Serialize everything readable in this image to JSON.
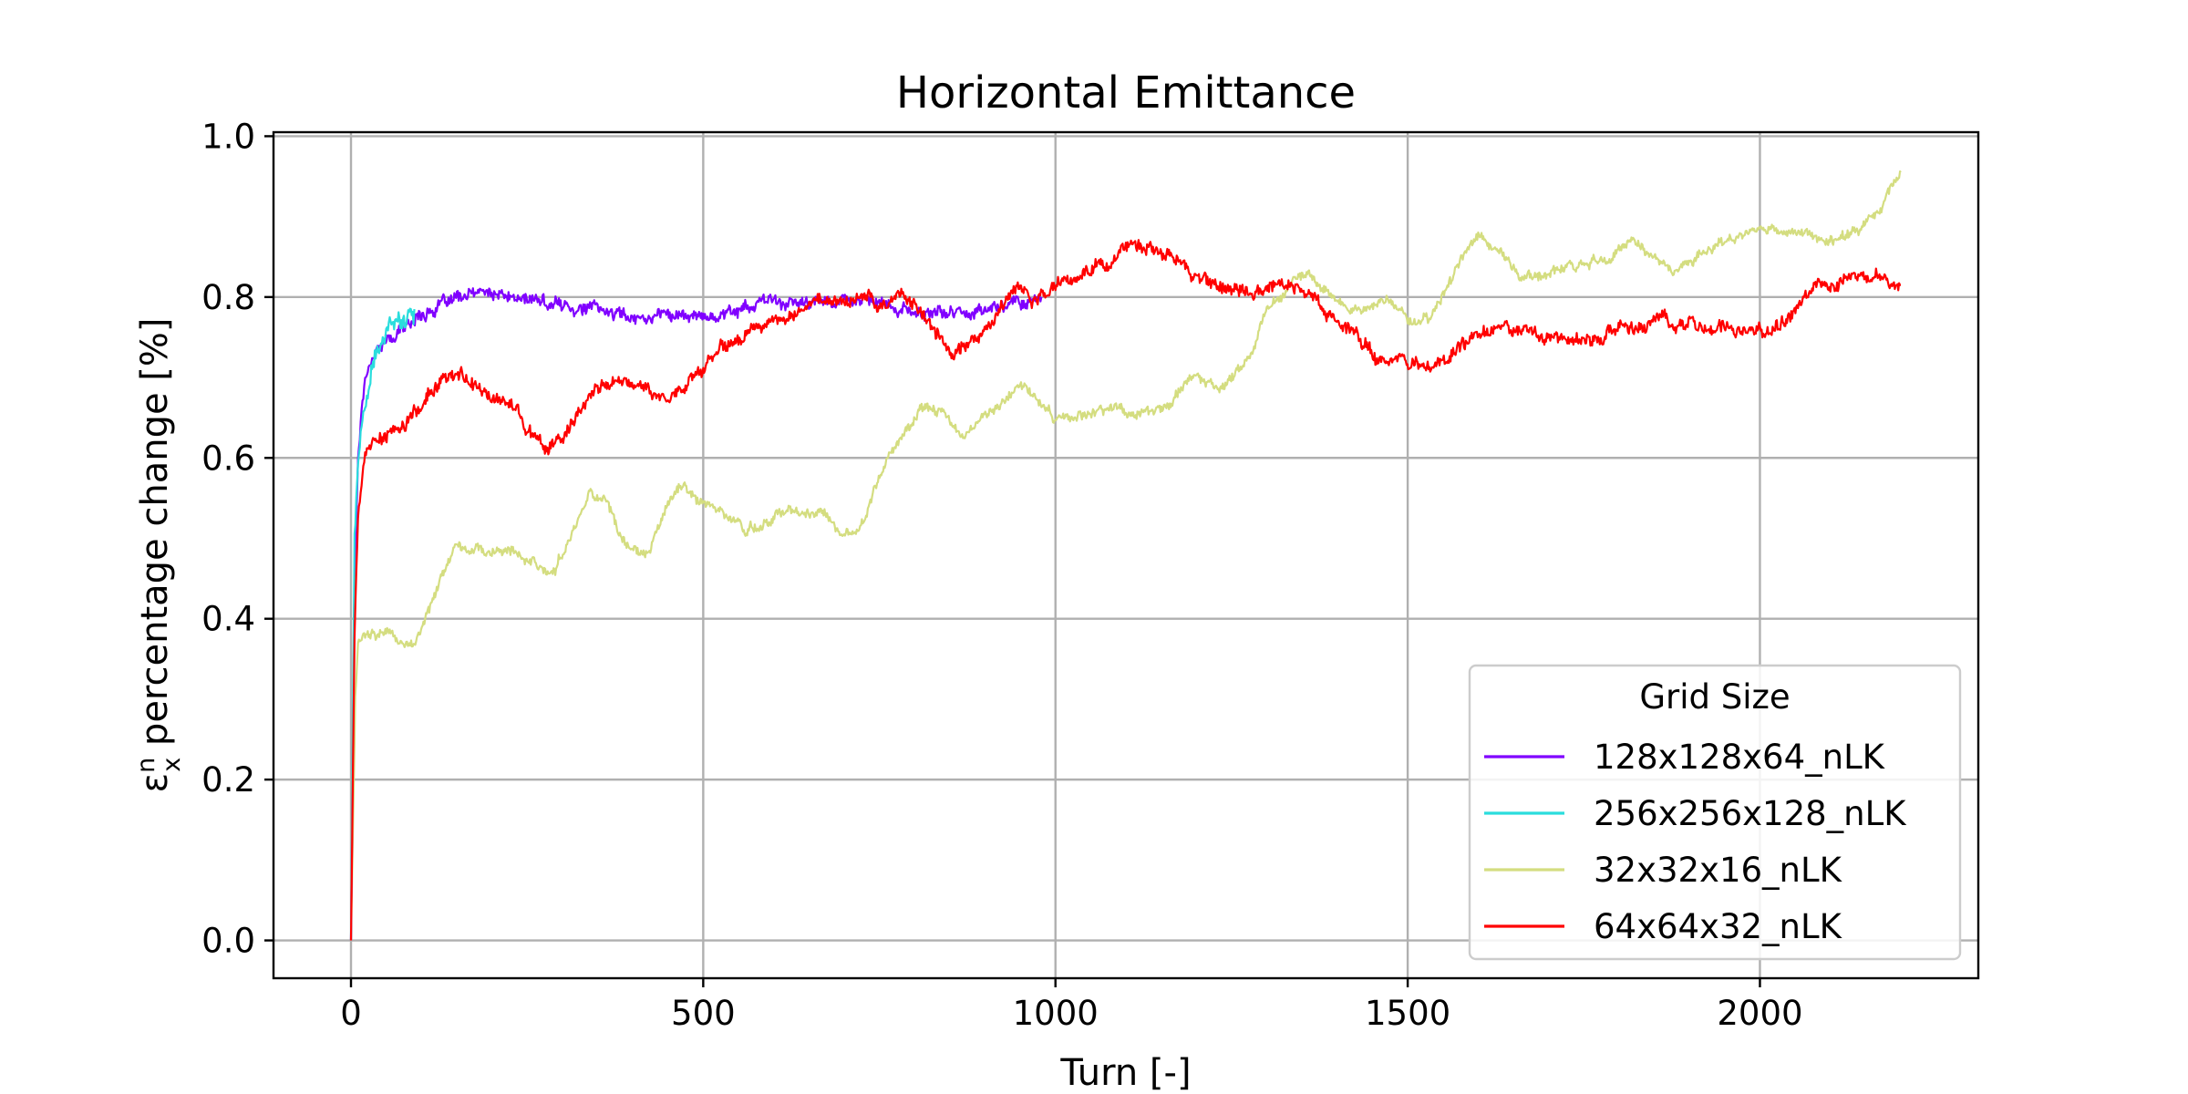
{
  "chart_data": {
    "type": "line",
    "title": "Horizontal Emittance",
    "xlabel": "Turn [-]",
    "ylabel_main": " percentage change [%]",
    "ylabel_symbol": "ε",
    "ylabel_sub": "x",
    "ylabel_sup": "n",
    "xlim": [
      -110,
      2310
    ],
    "ylim": [
      -0.047,
      1.005
    ],
    "xticks": [
      0,
      500,
      1000,
      1500,
      2000
    ],
    "xtick_labels": [
      "0",
      "500",
      "1000",
      "1500",
      "2000"
    ],
    "yticks": [
      0.0,
      0.2,
      0.4,
      0.6,
      0.8,
      1.0
    ],
    "ytick_labels": [
      "0.0",
      "0.2",
      "0.4",
      "0.6",
      "0.8",
      "1.0"
    ],
    "grid": true,
    "legend": {
      "title": "Grid Size",
      "placement": "lower-right"
    },
    "series": [
      {
        "name": "128x128x64_nLK",
        "color": "#8000ff",
        "noise": 0.011,
        "x": [
          0,
          5,
          10,
          15,
          20,
          30,
          40,
          60,
          80,
          100,
          130,
          160,
          190,
          220,
          260,
          300,
          350,
          400,
          450,
          500,
          550,
          600,
          650,
          700,
          750,
          800,
          850,
          900,
          950,
          980
        ],
        "y": [
          0.0,
          0.45,
          0.6,
          0.66,
          0.7,
          0.73,
          0.74,
          0.75,
          0.765,
          0.78,
          0.79,
          0.8,
          0.805,
          0.8,
          0.795,
          0.79,
          0.785,
          0.775,
          0.78,
          0.775,
          0.785,
          0.795,
          0.79,
          0.8,
          0.79,
          0.78,
          0.78,
          0.785,
          0.795,
          0.8
        ]
      },
      {
        "name": "256x256x128_nLK",
        "color": "#2adddd",
        "noise": 0.016,
        "x": [
          0,
          5,
          10,
          15,
          20,
          25,
          30,
          40,
          50,
          60,
          70,
          80,
          90
        ],
        "y": [
          0.0,
          0.5,
          0.6,
          0.64,
          0.66,
          0.68,
          0.71,
          0.73,
          0.755,
          0.765,
          0.77,
          0.78,
          0.785
        ]
      },
      {
        "name": "32x32x16_nLK",
        "color": "#d4dd80",
        "noise": 0.009,
        "x": [
          0,
          3,
          6,
          10,
          20,
          30,
          40,
          50,
          60,
          75,
          90,
          110,
          130,
          150,
          180,
          200,
          230,
          260,
          290,
          320,
          340,
          360,
          390,
          420,
          450,
          470,
          500,
          530,
          560,
          590,
          620,
          660,
          700,
          730,
          760,
          790,
          810,
          840,
          870,
          910,
          950,
          980,
          1000,
          1040,
          1080,
          1120,
          1160,
          1200,
          1240,
          1270,
          1300,
          1340,
          1360,
          1380,
          1410,
          1440,
          1470,
          1500,
          1530,
          1560,
          1600,
          1630,
          1660,
          1700,
          1740,
          1790,
          1820,
          1850,
          1880,
          1910,
          1950,
          2000,
          2040,
          2080,
          2110,
          2140,
          2170,
          2200
        ],
        "y": [
          0.0,
          0.15,
          0.3,
          0.37,
          0.38,
          0.385,
          0.38,
          0.385,
          0.375,
          0.365,
          0.37,
          0.41,
          0.45,
          0.49,
          0.49,
          0.48,
          0.485,
          0.47,
          0.46,
          0.52,
          0.56,
          0.55,
          0.49,
          0.475,
          0.545,
          0.565,
          0.545,
          0.53,
          0.51,
          0.52,
          0.535,
          0.535,
          0.51,
          0.525,
          0.6,
          0.64,
          0.665,
          0.655,
          0.625,
          0.66,
          0.69,
          0.67,
          0.645,
          0.655,
          0.66,
          0.655,
          0.67,
          0.7,
          0.69,
          0.72,
          0.78,
          0.825,
          0.83,
          0.81,
          0.79,
          0.78,
          0.8,
          0.77,
          0.77,
          0.82,
          0.88,
          0.86,
          0.82,
          0.83,
          0.84,
          0.85,
          0.87,
          0.85,
          0.83,
          0.85,
          0.87,
          0.885,
          0.88,
          0.875,
          0.87,
          0.88,
          0.91,
          0.955
        ]
      },
      {
        "name": "64x64x32_nLK",
        "color": "#ff0000",
        "noise": 0.012,
        "x": [
          0,
          5,
          10,
          15,
          20,
          30,
          40,
          60,
          80,
          100,
          120,
          140,
          160,
          180,
          200,
          230,
          260,
          280,
          300,
          330,
          350,
          380,
          400,
          430,
          450,
          470,
          500,
          520,
          550,
          580,
          620,
          660,
          700,
          730,
          760,
          780,
          800,
          830,
          850,
          870,
          890,
          910,
          930,
          950,
          970,
          1000,
          1040,
          1080,
          1100,
          1130,
          1160,
          1200,
          1240,
          1280,
          1320,
          1350,
          1380,
          1420,
          1440,
          1460,
          1490,
          1520,
          1550,
          1580,
          1620,
          1660,
          1700,
          1740,
          1780,
          1820,
          1860,
          1900,
          1940,
          1980,
          2000,
          2030,
          2060,
          2080,
          2100,
          2130,
          2160,
          2200
        ],
        "y": [
          0.0,
          0.38,
          0.52,
          0.57,
          0.6,
          0.615,
          0.625,
          0.63,
          0.645,
          0.665,
          0.69,
          0.705,
          0.7,
          0.685,
          0.675,
          0.665,
          0.625,
          0.61,
          0.625,
          0.665,
          0.685,
          0.695,
          0.69,
          0.685,
          0.675,
          0.685,
          0.71,
          0.735,
          0.745,
          0.76,
          0.775,
          0.79,
          0.795,
          0.8,
          0.79,
          0.805,
          0.79,
          0.76,
          0.735,
          0.735,
          0.75,
          0.77,
          0.8,
          0.81,
          0.8,
          0.81,
          0.83,
          0.845,
          0.86,
          0.86,
          0.855,
          0.83,
          0.81,
          0.805,
          0.815,
          0.81,
          0.785,
          0.76,
          0.74,
          0.72,
          0.72,
          0.715,
          0.73,
          0.745,
          0.76,
          0.765,
          0.745,
          0.745,
          0.75,
          0.765,
          0.77,
          0.77,
          0.765,
          0.76,
          0.755,
          0.77,
          0.795,
          0.81,
          0.815,
          0.825,
          0.82,
          0.815
        ]
      }
    ]
  }
}
